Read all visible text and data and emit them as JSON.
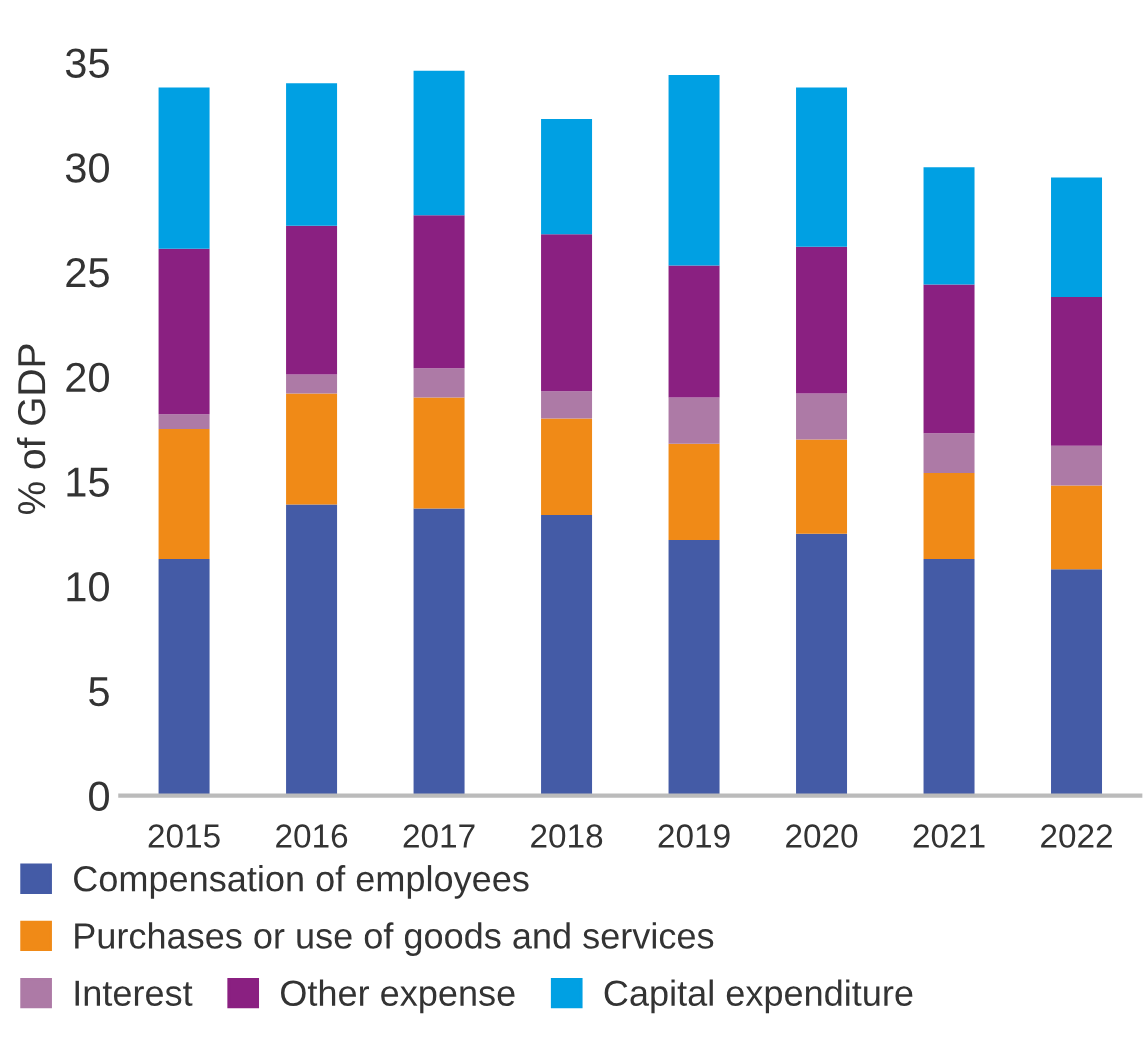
{
  "chart_data": {
    "type": "bar",
    "stacked": true,
    "ylabel": "% of GDP",
    "categories": [
      "2015",
      "2016",
      "2017",
      "2018",
      "2019",
      "2020",
      "2021",
      "2022"
    ],
    "ylim": [
      0,
      35
    ],
    "yticks": [
      0,
      5,
      10,
      15,
      20,
      25,
      30,
      35
    ],
    "grid": false,
    "legend": "bottom",
    "series": [
      {
        "name": "Compensation of employees",
        "color": "#445ba6",
        "values": [
          11.3,
          13.9,
          13.7,
          13.4,
          12.2,
          12.5,
          11.3,
          10.8
        ]
      },
      {
        "name": "Purchases or use of goods and services",
        "color": "#f08a17",
        "values": [
          6.2,
          5.3,
          5.3,
          4.6,
          4.6,
          4.5,
          4.1,
          4.0
        ]
      },
      {
        "name": "Interest",
        "color": "#ad7aa6",
        "values": [
          0.7,
          0.9,
          1.4,
          1.3,
          2.2,
          2.2,
          1.9,
          1.9
        ]
      },
      {
        "name": "Other expense",
        "color": "#8a2081",
        "values": [
          7.9,
          7.1,
          7.3,
          7.5,
          6.3,
          7.0,
          7.1,
          7.1
        ]
      },
      {
        "name": "Capital expenditure",
        "color": "#00a0e3",
        "values": [
          7.7,
          6.8,
          6.9,
          5.5,
          9.1,
          7.6,
          5.6,
          5.7
        ]
      }
    ]
  }
}
